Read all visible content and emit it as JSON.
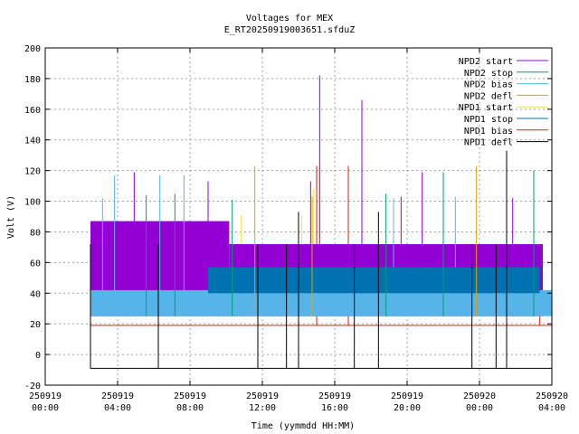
{
  "chart_data": {
    "type": "line",
    "title": "Voltages for MEX",
    "subtitle": "E_RT20250919003651.sfduZ",
    "xlabel": "Time (yymmdd HH:MM)",
    "ylabel": "Volt (V)",
    "xlim": [
      "2025-09-19 00:00",
      "2025-09-20 04:00"
    ],
    "ylim": [
      -20,
      200
    ],
    "grid": true,
    "legend_position": "top-right",
    "x_ticks": [
      {
        "date": "250919",
        "time": "00:00"
      },
      {
        "date": "250919",
        "time": "04:00"
      },
      {
        "date": "250919",
        "time": "08:00"
      },
      {
        "date": "250919",
        "time": "12:00"
      },
      {
        "date": "250919",
        "time": "16:00"
      },
      {
        "date": "250919",
        "time": "20:00"
      },
      {
        "date": "250920",
        "time": "00:00"
      },
      {
        "date": "250920",
        "time": "04:00"
      }
    ],
    "y_ticks": [
      "-20",
      "0",
      "20",
      "40",
      "60",
      "80",
      "100",
      "120",
      "140",
      "160",
      "180",
      "200"
    ],
    "series": [
      {
        "name": "NPD2 start",
        "color": "#9400d3",
        "bands": [
          {
            "start": "2025-09-19 02:30",
            "end": "2025-09-19 10:10",
            "low": 25,
            "high": 87
          },
          {
            "start": "2025-09-19 10:10",
            "end": "2025-09-20 03:30",
            "low": 25,
            "high": 72
          }
        ],
        "spikes": [
          {
            "time": "2025-09-19 04:55",
            "value": 119
          },
          {
            "time": "2025-09-19 09:00",
            "value": 113
          },
          {
            "time": "2025-09-19 14:40",
            "value": 113
          },
          {
            "time": "2025-09-19 15:10",
            "value": 182
          },
          {
            "time": "2025-09-19 17:30",
            "value": 166
          },
          {
            "time": "2025-09-19 20:50",
            "value": 119
          },
          {
            "time": "2025-09-19 19:40",
            "value": 103
          },
          {
            "time": "2025-09-20 01:50",
            "value": 102
          }
        ]
      },
      {
        "name": "NPD2 stop",
        "color": "#009e73",
        "spikes": [
          {
            "time": "2025-09-19 05:35",
            "value": 104
          },
          {
            "time": "2025-09-19 07:10",
            "value": 105
          },
          {
            "time": "2025-09-19 10:20",
            "value": 101
          },
          {
            "time": "2025-09-19 18:50",
            "value": 105
          },
          {
            "time": "2025-09-19 22:00",
            "value": 119
          },
          {
            "time": "2025-09-20 03:00",
            "value": 120
          }
        ]
      },
      {
        "name": "NPD2 bias",
        "color": "#56b4e9",
        "bands": [
          {
            "start": "2025-09-19 02:30",
            "end": "2025-09-20 04:00",
            "low": 25,
            "high": 42
          }
        ],
        "spikes": [
          {
            "time": "2025-09-19 03:10",
            "value": 102
          },
          {
            "time": "2025-09-19 03:50",
            "value": 117
          },
          {
            "time": "2025-09-19 06:20",
            "value": 117
          },
          {
            "time": "2025-09-19 07:40",
            "value": 117
          },
          {
            "time": "2025-09-19 19:15",
            "value": 102
          },
          {
            "time": "2025-09-19 22:40",
            "value": 103
          }
        ]
      },
      {
        "name": "NPD2 defl",
        "color": "#e69f00",
        "spikes": [
          {
            "time": "2025-09-19 11:35",
            "value": 123
          },
          {
            "time": "2025-09-19 14:45",
            "value": 103
          },
          {
            "time": "2025-09-19 23:50",
            "value": 123
          },
          {
            "time": "2025-09-19 21:40",
            "value": 26
          }
        ]
      },
      {
        "name": "NPD1 start",
        "color": "#f0e442",
        "constant": 28,
        "spikes": [
          {
            "time": "2025-09-19 10:50",
            "value": 91
          },
          {
            "time": "2025-09-19 14:10",
            "value": 91
          },
          {
            "time": "2025-09-19 14:50",
            "value": 108
          }
        ]
      },
      {
        "name": "NPD1 stop",
        "color": "#0072b2",
        "bands": [
          {
            "start": "2025-09-19 09:00",
            "end": "2025-09-20 03:20",
            "low": 40,
            "high": 57
          }
        ],
        "spikes": [
          {
            "time": "2025-09-20 03:00",
            "value": 103
          }
        ]
      },
      {
        "name": "NPD1 bias",
        "color": "#e51e10",
        "constant": 19,
        "spikes": [
          {
            "time": "2025-09-19 15:00",
            "value": 123
          },
          {
            "time": "2025-09-19 16:45",
            "value": 123
          },
          {
            "time": "2025-09-20 03:20",
            "value": 35
          }
        ]
      },
      {
        "name": "NPD1 defl",
        "color": "#000000",
        "baseline": -9,
        "spikes": [
          {
            "time": "2025-09-19 02:30",
            "value": 72
          },
          {
            "time": "2025-09-19 06:15",
            "value": 72
          },
          {
            "time": "2025-09-19 11:45",
            "value": 72
          },
          {
            "time": "2025-09-19 13:20",
            "value": 72
          },
          {
            "time": "2025-09-19 14:00",
            "value": 93
          },
          {
            "time": "2025-09-19 17:05",
            "value": 72
          },
          {
            "time": "2025-09-19 18:25",
            "value": 93
          },
          {
            "time": "2025-09-19 23:35",
            "value": 72
          },
          {
            "time": "2025-09-20 00:55",
            "value": 72
          },
          {
            "time": "2025-09-20 01:30",
            "value": 133
          }
        ]
      }
    ]
  }
}
